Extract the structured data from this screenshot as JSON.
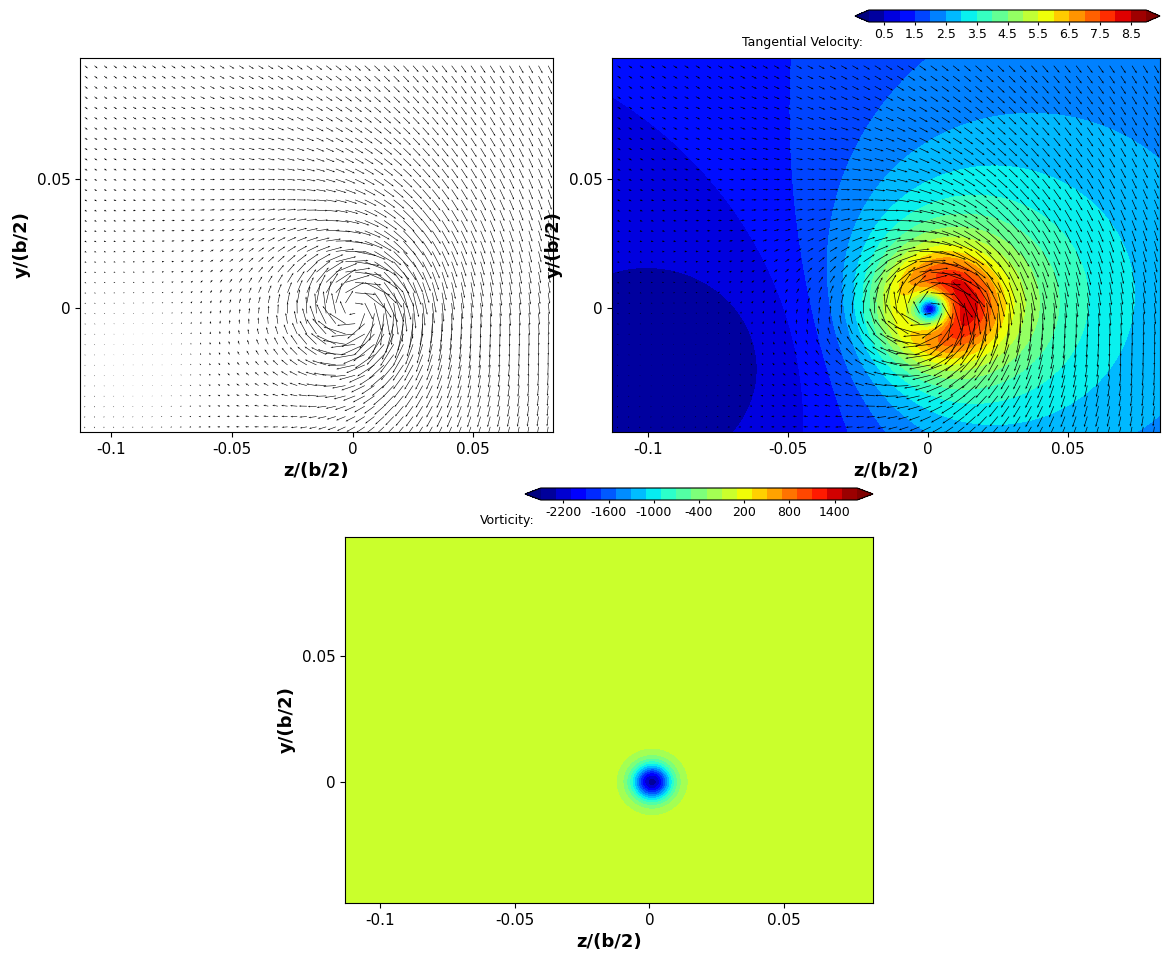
{
  "chart_data": [
    {
      "type": "quiver",
      "xlabel": "z/(b/2)",
      "ylabel": "y/(b/2)",
      "xlim": [
        -0.113,
        0.083
      ],
      "ylim": [
        -0.048,
        0.097
      ],
      "xticks": [
        -0.1,
        -0.05,
        0,
        0.05
      ],
      "yticks": [
        0,
        0.05
      ],
      "color": "#000000",
      "vortex": {
        "center": [
          0.002,
          0.0
        ],
        "core_radius": 0.011,
        "peak_velocity": 7.0,
        "background_velocity": [
          0.3,
          -1.3
        ]
      }
    },
    {
      "type": "quiver_contour",
      "xlabel": "z/(b/2)",
      "ylabel": "y/(b/2)",
      "xlim": [
        -0.113,
        0.083
      ],
      "ylim": [
        -0.048,
        0.097
      ],
      "xticks": [
        -0.1,
        -0.05,
        0,
        0.05
      ],
      "yticks": [
        0,
        0.05
      ],
      "color": "#000000",
      "vortex": {
        "center": [
          0.002,
          0.0
        ],
        "core_radius": 0.011,
        "peak_velocity": 7.0,
        "background_velocity": [
          0.3,
          -1.3
        ]
      },
      "colorbar": {
        "label": "Tangential Velocity:",
        "range": [
          0,
          9
        ],
        "ticks": [
          0.5,
          1.5,
          2.5,
          3.5,
          4.5,
          5.5,
          6.5,
          7.5,
          8.5
        ]
      }
    },
    {
      "type": "contour",
      "xlabel": "z/(b/2)",
      "ylabel": "y/(b/2)",
      "xlim": [
        -0.113,
        0.083
      ],
      "ylim": [
        -0.048,
        0.097
      ],
      "xticks": [
        -0.1,
        -0.05,
        0,
        0.05
      ],
      "yticks": [
        0,
        0.05
      ],
      "vorticity": {
        "center": [
          0.001,
          0.0
        ],
        "radius": 0.0075,
        "peak": -2400
      },
      "colorbar": {
        "label": "Vorticity:",
        "range": [
          -2500,
          1700
        ],
        "ticks": [
          -2200,
          -1600,
          -1000,
          -400,
          200,
          800,
          1400
        ]
      }
    }
  ]
}
